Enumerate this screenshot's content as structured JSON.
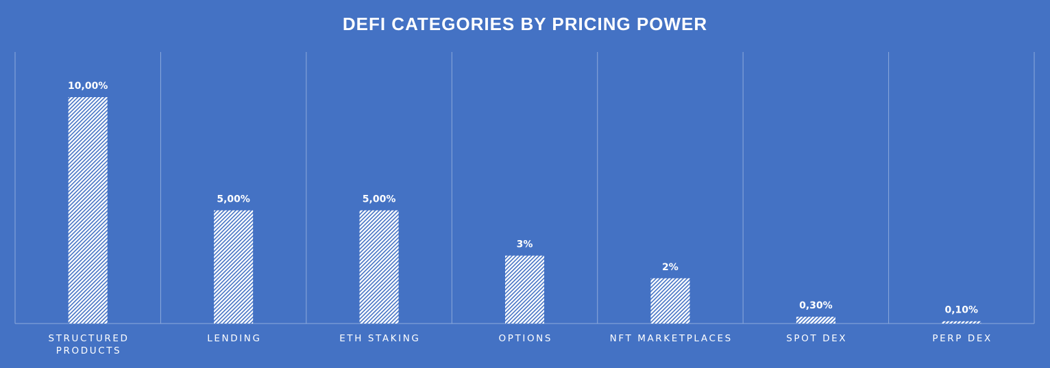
{
  "chart_data": {
    "type": "bar",
    "title": "DEFI CATEGORIES BY PRICING POWER",
    "xlabel": "",
    "ylabel": "",
    "categories": [
      [
        "STRUCTURED",
        "PRODUCTS"
      ],
      [
        "LENDING"
      ],
      [
        "ETH STAKING"
      ],
      [
        "OPTIONS"
      ],
      [
        "NFT MARKETPLACES"
      ],
      [
        "SPOT DEX"
      ],
      [
        "PERP DEX"
      ]
    ],
    "values": [
      10.0,
      5.0,
      5.0,
      3.0,
      2.0,
      0.3,
      0.1
    ],
    "data_labels": [
      "10,00%",
      "5,00%",
      "5,00%",
      "3%",
      "2%",
      "0,30%",
      "0,10%"
    ],
    "value_unit": "%",
    "ylim": [
      0,
      10.5
    ],
    "grid": "vertical separators between categories",
    "legend": "none",
    "bar_fill": "white diagonal hatch",
    "colors": {
      "background": "#4472c4",
      "text": "#ffffff",
      "bar_hatch": "#ffffff",
      "bar_hatch_alt": "#4472c4",
      "gridline": "#8eaadb"
    }
  }
}
